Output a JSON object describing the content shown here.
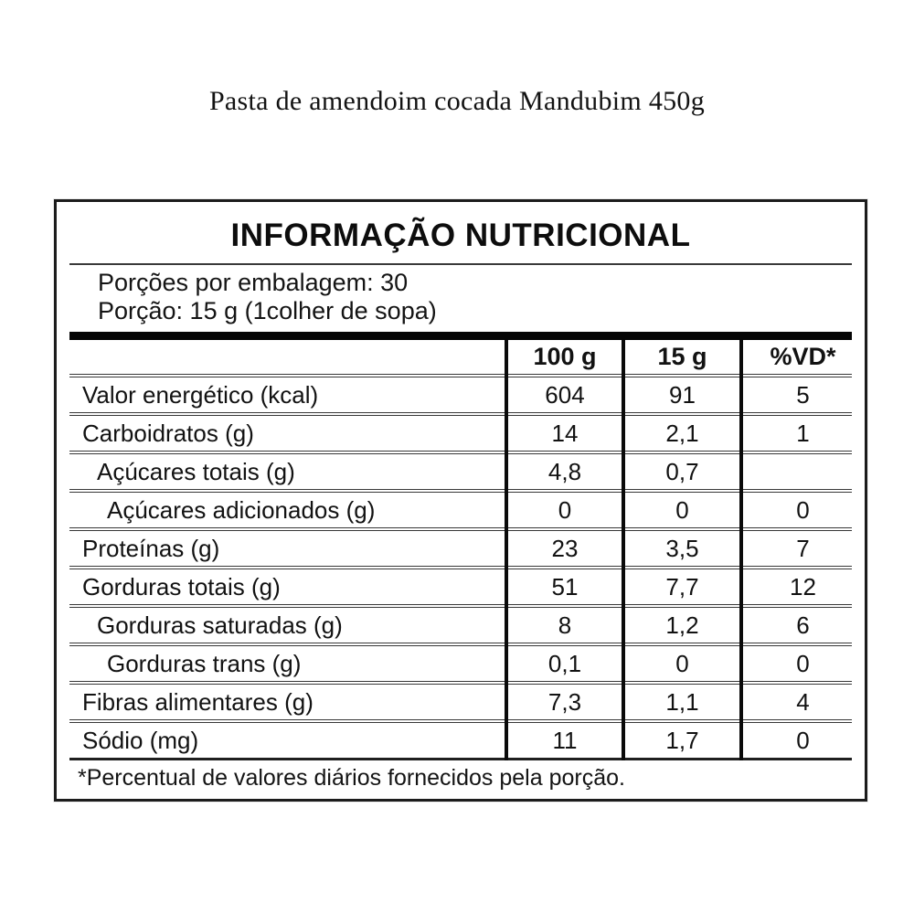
{
  "page": {
    "product_title": "Pasta de amendoim cocada Mandubim 450g"
  },
  "label": {
    "title": "INFORMAÇÃO NUTRICIONAL",
    "servings_per_package": "Porções por embalagem: 30",
    "serving_size": "Porção: 15 g (1colher de sopa)",
    "columns": [
      "",
      "100 g",
      "15 g",
      "%VD*"
    ],
    "rows": [
      {
        "label": "Valor energético (kcal)",
        "indent": 0,
        "per100g": "604",
        "per15g": "91",
        "vd": "5"
      },
      {
        "label": "Carboidratos (g)",
        "indent": 0,
        "per100g": "14",
        "per15g": "2,1",
        "vd": "1"
      },
      {
        "label": "Açúcares totais (g)",
        "indent": 1,
        "per100g": "4,8",
        "per15g": "0,7",
        "vd": ""
      },
      {
        "label": "Açúcares adicionados (g)",
        "indent": 2,
        "per100g": "0",
        "per15g": "0",
        "vd": "0"
      },
      {
        "label": "Proteínas (g)",
        "indent": 0,
        "per100g": "23",
        "per15g": "3,5",
        "vd": "7"
      },
      {
        "label": "Gorduras totais (g)",
        "indent": 0,
        "per100g": "51",
        "per15g": "7,7",
        "vd": "12"
      },
      {
        "label": "Gorduras saturadas (g)",
        "indent": 1,
        "per100g": "8",
        "per15g": "1,2",
        "vd": "6"
      },
      {
        "label": "Gorduras trans (g)",
        "indent": 2,
        "per100g": "0,1",
        "per15g": "0",
        "vd": "0"
      },
      {
        "label": "Fibras alimentares (g)",
        "indent": 0,
        "per100g": "7,3",
        "per15g": "1,1",
        "vd": "4"
      },
      {
        "label": "Sódio (mg)",
        "indent": 0,
        "per100g": "11",
        "per15g": "1,7",
        "vd": "0"
      }
    ],
    "footnote": "*Percentual de valores diários fornecidos pela porção.",
    "colors": {
      "text": "#1a1a1a",
      "border": "#1c1c1c",
      "thick_bar": "#050505",
      "background": "#ffffff"
    }
  }
}
